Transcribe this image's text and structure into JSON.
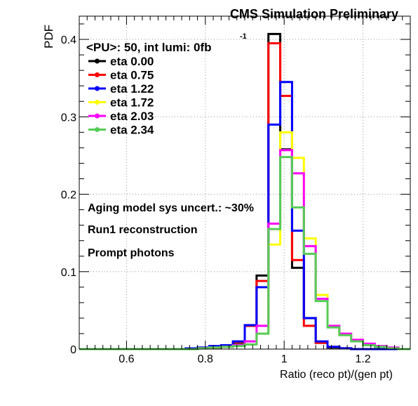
{
  "chart_data": {
    "type": "line",
    "title": "CMS Simulation Preliminary",
    "xlabel": "Ratio (reco pt)/(gen pt)",
    "ylabel": "PDF",
    "xlim": [
      0.48,
      1.32
    ],
    "ylim": [
      0,
      0.43
    ],
    "xticks": [
      0.6,
      0.8,
      1,
      1.2
    ],
    "xtick_labels": [
      "0.6",
      "0.8",
      "1",
      "1.2"
    ],
    "yticks": [
      0,
      0.1,
      0.2,
      0.3,
      0.4
    ],
    "ytick_labels": [
      "0",
      "0.1",
      "0.2",
      "0.3",
      "0.4"
    ],
    "grid": true,
    "legend_position": "top-left",
    "legend_header": "<PU>: 50, int lumi: 0fb",
    "legend_header_superscript": "-1",
    "bin_edges": [
      0.48,
      0.51,
      0.54,
      0.57,
      0.6,
      0.63,
      0.66,
      0.69,
      0.72,
      0.75,
      0.78,
      0.81,
      0.84,
      0.87,
      0.9,
      0.93,
      0.96,
      0.99,
      1.02,
      1.05,
      1.08,
      1.11,
      1.14,
      1.17,
      1.2,
      1.23,
      1.26,
      1.29,
      1.32
    ],
    "series": [
      {
        "name": "eta 0.00",
        "color": "#000000",
        "values": [
          0,
          0,
          0,
          0,
          0,
          0,
          0,
          0,
          0,
          0,
          0.001,
          0.002,
          0.003,
          0.008,
          0.03,
          0.095,
          0.407,
          0.258,
          0.105,
          0.04,
          0.008,
          0.002,
          0.001,
          0,
          0,
          0,
          0,
          0
        ]
      },
      {
        "name": "eta 0.75",
        "color": "#ff0000",
        "values": [
          0,
          0,
          0,
          0,
          0,
          0,
          0,
          0,
          0,
          0,
          0.001,
          0.002,
          0.004,
          0.009,
          0.03,
          0.088,
          0.395,
          0.327,
          0.115,
          0.03,
          0.008,
          0.003,
          0.001,
          0,
          0,
          0,
          0,
          0
        ]
      },
      {
        "name": "eta 1.22",
        "color": "#0000ff",
        "values": [
          0,
          0,
          0,
          0,
          0,
          0,
          0,
          0,
          0,
          0.001,
          0.002,
          0.004,
          0.005,
          0.01,
          0.031,
          0.08,
          0.29,
          0.345,
          0.153,
          0.04,
          0.01,
          0.003,
          0.001,
          0,
          0,
          0,
          0,
          0
        ]
      },
      {
        "name": "eta 1.72",
        "color": "#ffff00",
        "values": [
          0,
          0,
          0,
          0,
          0,
          0,
          0,
          0,
          0,
          0,
          0.001,
          0.002,
          0.003,
          0.005,
          0.01,
          0.02,
          0.135,
          0.28,
          0.247,
          0.143,
          0.07,
          0.03,
          0.018,
          0.012,
          0.006,
          0.003,
          0.001,
          0
        ]
      },
      {
        "name": "eta 2.03",
        "color": "#ff00ff",
        "values": [
          0,
          0,
          0,
          0,
          0,
          0,
          0,
          0,
          0,
          0,
          0.001,
          0.002,
          0.003,
          0.005,
          0.01,
          0.03,
          0.162,
          0.257,
          0.227,
          0.133,
          0.065,
          0.03,
          0.02,
          0.012,
          0.007,
          0.004,
          0.002,
          0
        ]
      },
      {
        "name": "eta 2.34",
        "color": "#55cc55",
        "values": [
          0,
          0,
          0,
          0,
          0,
          0,
          0,
          0,
          0,
          0,
          0.001,
          0.002,
          0.003,
          0.004,
          0.006,
          0.02,
          0.155,
          0.248,
          0.183,
          0.123,
          0.062,
          0.028,
          0.018,
          0.01,
          0.005,
          0.003,
          0.001,
          0
        ]
      }
    ],
    "annotations": [
      "Aging model sys uncert.: ~30%",
      "Run1 reconstruction",
      "Prompt photons"
    ]
  }
}
